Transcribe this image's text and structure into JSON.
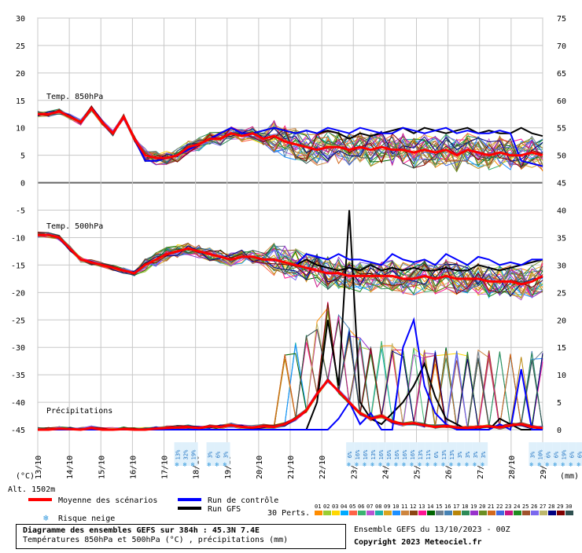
{
  "chart_data": {
    "type": "line",
    "title": "Diagramme des ensembles GEFS sur 384h : 45.3N 7.4E",
    "subtitle": "Températures 850hPa et 500hPa (°C) , précipitations (mm)",
    "left_axis": {
      "label": "(°C)",
      "ticks": [
        "30",
        "25",
        "20",
        "15",
        "10",
        "5",
        "0",
        "-5",
        "-10",
        "-15",
        "-20",
        "-25",
        "-30",
        "-35",
        "-40",
        "-45"
      ],
      "range": [
        -45,
        30
      ]
    },
    "right_axis": {
      "label": "(mm)",
      "ticks": [
        "75",
        "70",
        "65",
        "60",
        "55",
        "50",
        "45",
        "40",
        "35",
        "30",
        "25",
        "20",
        "15",
        "10",
        "5",
        "0"
      ],
      "range": [
        0,
        75
      ]
    },
    "x_labels": [
      "13/10",
      "14/10",
      "15/10",
      "16/10",
      "17/10",
      "18/10",
      "19/10",
      "20/10",
      "21/10",
      "22/10",
      "23/10",
      "24/10",
      "25/10",
      "26/10",
      "27/10",
      "28/10",
      "29/10"
    ],
    "panel_labels": {
      "t850": "Temp. 850hPa",
      "t500": "Temp. 500hPa",
      "precip": "Précipitations"
    },
    "altitude": "Alt. 1502m",
    "series": [
      {
        "name": "Moyenne des scénarios",
        "color": "#ff0000",
        "t850": [
          12.5,
          12.5,
          13,
          12,
          11,
          13.5,
          11,
          9,
          12,
          8,
          5,
          4.5,
          4.5,
          5,
          6.5,
          7,
          8,
          8,
          9,
          8.5,
          9,
          8,
          8.5,
          7.5,
          7,
          6.5,
          6,
          6.5,
          6.5,
          6,
          6.5,
          6,
          6.5,
          6,
          6,
          5.5,
          6,
          5.5,
          6,
          5,
          6,
          5.5,
          5,
          5.5,
          5,
          5,
          5.5,
          5
        ],
        "t500": [
          -9.5,
          -9.5,
          -10,
          -12,
          -14,
          -14.5,
          -15,
          -15.5,
          -16,
          -16.5,
          -15,
          -14,
          -13,
          -12.5,
          -12,
          -12.5,
          -13,
          -13.5,
          -14,
          -13.5,
          -13.5,
          -14,
          -14,
          -14.5,
          -15,
          -15.5,
          -16,
          -16.5,
          -16.5,
          -17,
          -17,
          -17,
          -17,
          -17,
          -17.5,
          -17.5,
          -17,
          -17.5,
          -17,
          -17.5,
          -17.5,
          -17.5,
          -18,
          -18,
          -18,
          -18.5,
          -18,
          -17
        ],
        "precip": [
          0,
          0,
          0.2,
          0.1,
          0,
          0.3,
          0,
          0,
          0.1,
          0,
          0,
          0.2,
          0.3,
          0.4,
          0.5,
          0.3,
          0.6,
          0.5,
          0.8,
          0.5,
          0.4,
          0.6,
          0.5,
          1,
          2,
          3.5,
          6.5,
          9,
          7,
          5,
          3,
          2,
          2.5,
          1.5,
          1,
          1.2,
          0.8,
          0.5,
          0.7,
          0.4,
          0.3,
          0.5,
          0.6,
          0.4,
          0.8,
          1,
          0.5,
          0.3
        ]
      },
      {
        "name": "Run de contrôle",
        "color": "#0000ff",
        "t850": [
          12.5,
          12.5,
          13,
          12,
          11,
          13.5,
          11,
          9,
          12,
          8,
          4,
          4,
          4.5,
          5,
          6,
          7,
          8,
          9,
          10,
          9,
          9,
          9.5,
          10,
          9.5,
          9,
          9.5,
          9,
          10,
          9.5,
          9,
          10,
          9.5,
          9,
          9,
          10,
          9.5,
          9,
          9.5,
          10,
          9,
          9.5,
          9,
          9,
          9.5,
          9,
          4,
          3.5,
          3
        ],
        "t500": [
          -9.5,
          -9.5,
          -10,
          -12,
          -14,
          -14.5,
          -15,
          -15.5,
          -16,
          -16.5,
          -15,
          -14,
          -13,
          -12.5,
          -12,
          -12.5,
          -13,
          -13.5,
          -14,
          -13.5,
          -13.5,
          -14,
          -14,
          -14.5,
          -15,
          -13,
          -13.5,
          -14,
          -13,
          -14,
          -14,
          -14.5,
          -15,
          -13,
          -14,
          -14.5,
          -14,
          -15,
          -13,
          -14,
          -15,
          -13.5,
          -14,
          -15,
          -14.5,
          -15,
          -14,
          -14
        ],
        "precip": [
          0,
          0,
          0,
          0,
          0,
          0,
          0,
          0,
          0,
          0,
          0,
          0,
          0,
          0,
          0,
          0,
          0,
          0,
          0,
          0,
          0,
          0,
          0,
          0,
          0,
          0,
          0,
          0,
          2,
          5,
          1,
          3,
          0,
          0,
          15,
          20,
          8,
          3,
          1,
          0,
          0,
          0,
          0,
          1,
          0,
          11,
          0,
          0
        ]
      },
      {
        "name": "Run GFS",
        "color": "#000000",
        "t850": [
          12.5,
          12.5,
          13,
          12,
          11,
          13.5,
          11,
          9,
          12,
          8,
          4,
          4,
          4.5,
          5,
          6,
          7,
          8,
          9,
          10,
          9,
          9,
          9.5,
          10,
          9.5,
          9,
          9.5,
          9,
          9.5,
          9,
          8,
          9,
          8.5,
          9,
          9.5,
          10,
          9,
          10,
          9.5,
          9,
          9.5,
          10,
          9,
          9.5,
          9,
          9,
          10,
          9,
          8.5
        ],
        "t500": [
          -9.5,
          -9.5,
          -10,
          -12,
          -14,
          -14.5,
          -15,
          -15.5,
          -16,
          -16.5,
          -15,
          -14,
          -13,
          -12.5,
          -12,
          -12.5,
          -13,
          -13.5,
          -14,
          -13.5,
          -13.5,
          -14,
          -14,
          -14.5,
          -15,
          -14,
          -15,
          -15.5,
          -16,
          -15.5,
          -16,
          -15,
          -16,
          -15.5,
          -16,
          -15.5,
          -16,
          -16,
          -15.5,
          -16,
          -16,
          -15,
          -15.5,
          -16,
          -15.5,
          -15,
          -14.5,
          -14
        ],
        "precip": [
          0,
          0,
          0,
          0,
          0,
          0,
          0,
          0,
          0,
          0,
          0,
          0,
          0,
          0,
          0,
          0,
          0,
          0,
          0,
          0,
          0,
          0,
          0,
          0,
          0,
          0,
          5,
          20,
          8,
          40,
          5,
          2,
          1,
          3,
          5,
          8,
          12,
          6,
          2,
          1,
          0,
          0,
          0,
          2,
          1,
          0,
          0,
          0
        ]
      }
    ],
    "snow_risk": [
      {
        "x_index": 13,
        "values": [
          "13%",
          "32%",
          "19%"
        ]
      },
      {
        "x_index": 16,
        "values": [
          "3%",
          "6%",
          "3%"
        ]
      },
      {
        "x_index": 29,
        "values": [
          "6%",
          "16%",
          "16%",
          "13%",
          "16%",
          "16%",
          "16%",
          "16%",
          "16%",
          "13%",
          "11%",
          "6%",
          "13%",
          "13%",
          "3%",
          "3%",
          "3%",
          "3%"
        ]
      },
      {
        "x_index": 46,
        "values": [
          "3%",
          "10%",
          "6%",
          "6%",
          "19%",
          "6%",
          "6%",
          "16%",
          "23%",
          "23%",
          "13%",
          "29%"
        ]
      }
    ],
    "perturbation_colors": [
      "#ff8c00",
      "#9acd32",
      "#ffd700",
      "#00aaff",
      "#ff6347",
      "#3cb371",
      "#ba55d3",
      "#20b2aa",
      "#daa520",
      "#1e90ff",
      "#cd853f",
      "#8b4513",
      "#ff1493",
      "#006400",
      "#708090",
      "#4682b4",
      "#b8860b",
      "#2e8b57",
      "#9932cc",
      "#6b8e23",
      "#d2691e",
      "#4169e1",
      "#c71585",
      "#228b22",
      "#a0522d",
      "#7b68ee",
      "#bdb76b",
      "#000080",
      "#800000",
      "#2f4f4f"
    ]
  },
  "legend": {
    "mean": "Moyenne des scénarios",
    "control": "Run de contrôle",
    "gfs": "Run GFS",
    "snow": "Risque neige",
    "perts": "30 Perts.",
    "pert_numbers": [
      "01",
      "02",
      "03",
      "04",
      "05",
      "06",
      "07",
      "08",
      "09",
      "10",
      "11",
      "12",
      "13",
      "14",
      "15",
      "16",
      "17",
      "18",
      "19",
      "20",
      "21",
      "22",
      "23",
      "24",
      "25",
      "26",
      "27",
      "28",
      "29",
      "30"
    ]
  },
  "footer": {
    "title": "Diagramme des ensembles GEFS sur 384h : 45.3N 7.4E",
    "subtitle": "Températures 850hPa et 500hPa (°C) , précipitations (mm)",
    "ensemble": "Ensemble GEFS du 13/10/2023 - 00Z",
    "copyright": "Copyright 2023 Meteociel.fr"
  }
}
